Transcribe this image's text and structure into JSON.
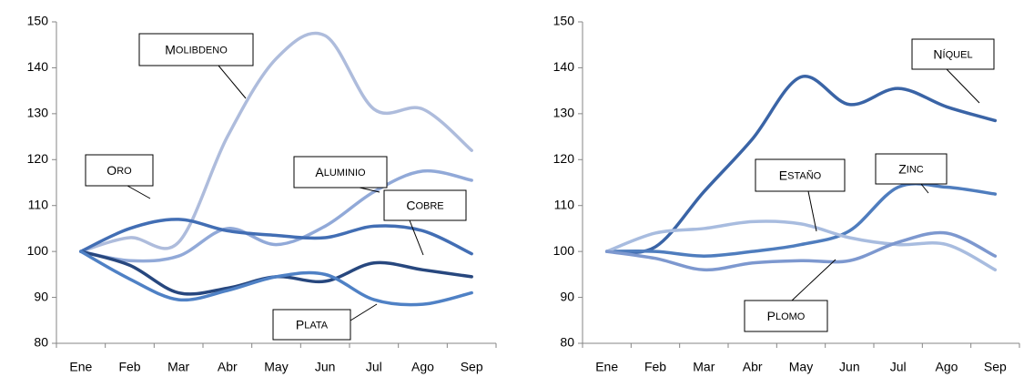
{
  "chart_data": [
    {
      "type": "line",
      "categories": [
        "Ene",
        "Feb",
        "Mar",
        "Abr",
        "May",
        "Jun",
        "Jul",
        "Ago",
        "Sep"
      ],
      "ylim": [
        80,
        150
      ],
      "yticks": [
        "80",
        "90",
        "100",
        "110",
        "120",
        "130",
        "140",
        "150"
      ],
      "grid": false,
      "series": [
        {
          "name": "MOLIBDENO",
          "color": "#aebcdc",
          "values": [
            100,
            103,
            102,
            125,
            142,
            147,
            131,
            131,
            122
          ]
        },
        {
          "name": "ALUMINIO",
          "color": "#91a9d8",
          "values": [
            100,
            98,
            99,
            105,
            101.5,
            105.5,
            113,
            117.5,
            115.5
          ]
        },
        {
          "name": "ORO",
          "color": "#426eb4",
          "values": [
            100,
            105,
            107,
            104.5,
            103.5,
            103,
            105.5,
            104.5,
            99.5
          ]
        },
        {
          "name": "COBRE",
          "color": "#27477e",
          "values": [
            100,
            97,
            91,
            92,
            94.5,
            93.5,
            97.5,
            96,
            94.5
          ]
        },
        {
          "name": "PLATA",
          "color": "#4f81c5",
          "values": [
            100,
            94,
            89.5,
            91.5,
            94.5,
            95,
            89.5,
            88.5,
            91
          ]
        }
      ]
    },
    {
      "type": "line",
      "categories": [
        "Ene",
        "Feb",
        "Mar",
        "Abr",
        "May",
        "Jun",
        "Jul",
        "Ago",
        "Sep"
      ],
      "ylim": [
        80,
        150
      ],
      "yticks": [
        "80",
        "90",
        "100",
        "110",
        "120",
        "130",
        "140",
        "150"
      ],
      "grid": false,
      "series": [
        {
          "name": "NÍQUEL",
          "color": "#3a64a6",
          "values": [
            100,
            101,
            113,
            124.5,
            138,
            132,
            135.5,
            131.5,
            128.5
          ]
        },
        {
          "name": "ZINC",
          "color": "#4f7dbe",
          "values": [
            100,
            100,
            99,
            100,
            101.5,
            104.5,
            114,
            114,
            112.5
          ]
        },
        {
          "name": "ESTAÑO",
          "color": "#a8bcdf",
          "values": [
            100,
            104,
            105,
            106.5,
            106,
            103,
            101.5,
            101.5,
            96
          ]
        },
        {
          "name": "PLOMO",
          "color": "#7d98cf",
          "values": [
            100,
            98.5,
            96,
            97.5,
            98,
            98,
            102,
            104,
            99
          ]
        }
      ]
    }
  ]
}
